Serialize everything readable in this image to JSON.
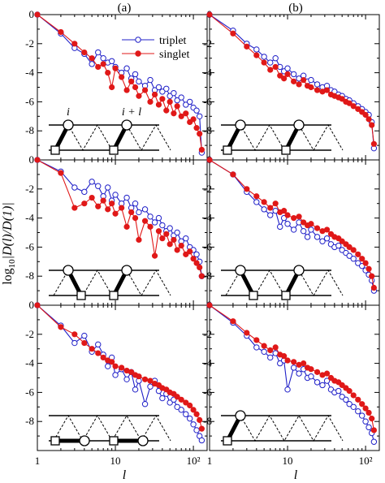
{
  "figure": {
    "column_labels": [
      "(a)",
      "(b)"
    ],
    "ylabel": "log10|D(l)/D(1)|",
    "ylabel_parts": {
      "log": "log",
      "sub": "10",
      "body": "|D(l)/D(1)|"
    },
    "xlabel": "l",
    "colors": {
      "triplet": "#2020c8",
      "singlet": "#e01818"
    }
  },
  "legend": {
    "triplet": "triplet",
    "singlet": "singlet"
  },
  "lattice_labels": {
    "site_i": "i",
    "site_il": "i + l"
  },
  "axes": {
    "y_ticks": [
      0,
      -2,
      -4,
      -6,
      -8
    ],
    "y_tick_labels": [
      "0",
      "-2",
      "-4",
      "-6",
      "-8"
    ],
    "x_ticks": [
      1,
      10,
      100
    ],
    "x_tick_labels": [
      "1",
      "10",
      "10²"
    ],
    "xlim": [
      1,
      150
    ],
    "ylim": [
      -10,
      0
    ],
    "xscale": "log"
  },
  "chart_data": [
    {
      "type": "line",
      "panel": "row1-a",
      "xscale": "log",
      "series": [
        {
          "name": "triplet",
          "x": [
            1,
            2,
            3,
            4,
            5,
            6,
            7,
            8,
            9,
            10,
            12,
            14,
            16,
            18,
            20,
            24,
            28,
            32,
            36,
            40,
            45,
            50,
            56,
            62,
            70,
            80,
            90,
            100,
            110,
            120,
            128
          ],
          "y": [
            0,
            -1.3,
            -2.3,
            -2.7,
            -3.4,
            -2.6,
            -3.0,
            -3.3,
            -3.2,
            -3.6,
            -4.0,
            -3.7,
            -4.4,
            -4.1,
            -4.6,
            -4.9,
            -4.5,
            -5.2,
            -5.0,
            -5.3,
            -5.1,
            -5.6,
            -5.4,
            -5.9,
            -5.7,
            -6.2,
            -6.0,
            -6.4,
            -6.6,
            -7.0,
            -9.5
          ]
        },
        {
          "name": "singlet",
          "x": [
            1,
            2,
            3,
            4,
            5,
            6,
            7,
            8,
            9,
            10,
            12,
            14,
            16,
            18,
            20,
            24,
            28,
            32,
            36,
            40,
            45,
            50,
            56,
            62,
            70,
            80,
            90,
            100,
            110,
            120,
            128
          ],
          "y": [
            0,
            -1.2,
            -2.0,
            -2.6,
            -3.0,
            -3.6,
            -3.4,
            -4.0,
            -5.0,
            -3.7,
            -4.3,
            -5.2,
            -4.6,
            -5.0,
            -5.6,
            -5.2,
            -6.0,
            -5.5,
            -6.2,
            -5.8,
            -6.6,
            -6.0,
            -6.8,
            -6.3,
            -7.0,
            -6.8,
            -7.4,
            -7.2,
            -7.8,
            -8.2,
            -9.3
          ]
        }
      ]
    },
    {
      "type": "line",
      "panel": "row1-b",
      "xscale": "log",
      "series": [
        {
          "name": "triplet",
          "x": [
            1,
            2,
            3,
            4,
            5,
            6,
            7,
            8,
            9,
            10,
            12,
            14,
            16,
            18,
            20,
            24,
            28,
            32,
            36,
            40,
            45,
            50,
            56,
            62,
            70,
            80,
            90,
            100,
            110,
            120,
            128
          ],
          "y": [
            0,
            -1.1,
            -2.0,
            -2.4,
            -2.9,
            -3.3,
            -3.0,
            -3.6,
            -3.9,
            -3.7,
            -4.1,
            -4.4,
            -4.2,
            -4.6,
            -4.5,
            -4.8,
            -5.0,
            -4.9,
            -5.2,
            -5.3,
            -5.5,
            -5.6,
            -5.8,
            -5.9,
            -6.1,
            -6.3,
            -6.5,
            -6.7,
            -6.9,
            -7.4,
            -9.2
          ]
        },
        {
          "name": "singlet",
          "x": [
            1,
            2,
            3,
            4,
            5,
            6,
            7,
            8,
            9,
            10,
            12,
            14,
            16,
            18,
            20,
            24,
            28,
            32,
            36,
            40,
            45,
            50,
            56,
            62,
            70,
            80,
            90,
            100,
            110,
            120,
            128
          ],
          "y": [
            0,
            -1.3,
            -2.2,
            -2.8,
            -3.3,
            -3.8,
            -3.6,
            -4.2,
            -4.4,
            -4.1,
            -4.6,
            -4.8,
            -4.5,
            -4.9,
            -5.0,
            -5.2,
            -5.3,
            -5.2,
            -5.5,
            -5.6,
            -5.7,
            -5.8,
            -6.0,
            -6.1,
            -6.3,
            -6.5,
            -6.7,
            -6.9,
            -7.2,
            -7.6,
            -8.9
          ]
        }
      ]
    },
    {
      "type": "line",
      "panel": "row2-a",
      "xscale": "log",
      "series": [
        {
          "name": "triplet",
          "x": [
            1,
            2,
            3,
            4,
            5,
            6,
            7,
            8,
            9,
            10,
            12,
            14,
            16,
            18,
            20,
            24,
            28,
            32,
            36,
            40,
            45,
            50,
            56,
            62,
            70,
            80,
            90,
            100,
            110,
            120,
            128
          ],
          "y": [
            0,
            -0.8,
            -1.9,
            -2.2,
            -1.5,
            -1.8,
            -2.5,
            -1.9,
            -2.8,
            -2.4,
            -3.0,
            -2.6,
            -3.3,
            -3.0,
            -3.6,
            -3.4,
            -3.9,
            -4.3,
            -4.0,
            -4.5,
            -4.9,
            -4.7,
            -5.2,
            -5.0,
            -5.6,
            -5.4,
            -6.0,
            -6.2,
            -6.5,
            -7.0,
            -8.0
          ]
        },
        {
          "name": "singlet",
          "x": [
            1,
            2,
            3,
            4,
            5,
            6,
            7,
            8,
            9,
            10,
            12,
            14,
            16,
            18,
            20,
            24,
            28,
            32,
            36,
            40,
            45,
            50,
            56,
            62,
            70,
            80,
            90,
            100,
            110,
            120,
            128
          ],
          "y": [
            0,
            -0.9,
            -3.3,
            -3.0,
            -2.6,
            -3.2,
            -2.8,
            -3.4,
            -3.0,
            -3.7,
            -3.3,
            -4.6,
            -3.6,
            -4.0,
            -5.5,
            -4.2,
            -4.6,
            -6.6,
            -4.9,
            -5.4,
            -5.1,
            -5.8,
            -5.5,
            -6.2,
            -5.9,
            -6.5,
            -6.3,
            -6.8,
            -7.1,
            -7.4,
            -8.0
          ]
        }
      ]
    },
    {
      "type": "line",
      "panel": "row2-b",
      "xscale": "log",
      "series": [
        {
          "name": "triplet",
          "x": [
            1,
            2,
            3,
            4,
            5,
            6,
            7,
            8,
            9,
            10,
            12,
            14,
            16,
            18,
            20,
            24,
            28,
            32,
            36,
            40,
            45,
            50,
            56,
            62,
            70,
            80,
            90,
            100,
            110,
            120,
            128
          ],
          "y": [
            0,
            -1.0,
            -2.2,
            -2.9,
            -3.4,
            -3.8,
            -3.5,
            -4.6,
            -4.0,
            -4.4,
            -4.8,
            -4.3,
            -4.9,
            -5.3,
            -4.8,
            -5.3,
            -5.6,
            -5.4,
            -5.8,
            -6.0,
            -5.9,
            -6.2,
            -6.4,
            -6.6,
            -6.8,
            -7.1,
            -7.3,
            -7.6,
            -7.9,
            -8.3,
            -9.0
          ]
        },
        {
          "name": "singlet",
          "x": [
            1,
            2,
            3,
            4,
            5,
            6,
            7,
            8,
            9,
            10,
            12,
            14,
            16,
            18,
            20,
            24,
            28,
            32,
            36,
            40,
            45,
            50,
            56,
            62,
            70,
            80,
            90,
            100,
            110,
            120,
            128
          ],
          "y": [
            0,
            -1.0,
            -2.0,
            -2.5,
            -2.9,
            -3.3,
            -3.0,
            -3.6,
            -3.5,
            -3.8,
            -4.0,
            -3.9,
            -4.3,
            -4.5,
            -4.4,
            -4.7,
            -4.9,
            -4.8,
            -5.1,
            -5.3,
            -5.4,
            -5.6,
            -5.8,
            -6.0,
            -6.2,
            -6.5,
            -6.8,
            -7.1,
            -7.5,
            -8.0,
            -8.8
          ]
        }
      ]
    },
    {
      "type": "line",
      "panel": "row3-a",
      "xscale": "log",
      "series": [
        {
          "name": "triplet",
          "x": [
            1,
            2,
            3,
            4,
            5,
            6,
            7,
            8,
            9,
            10,
            12,
            14,
            16,
            18,
            20,
            24,
            28,
            32,
            36,
            40,
            45,
            50,
            56,
            62,
            70,
            80,
            90,
            100,
            110,
            120,
            128
          ],
          "y": [
            0,
            -1.4,
            -2.6,
            -2.1,
            -3.2,
            -2.7,
            -3.4,
            -4.2,
            -3.6,
            -4.8,
            -4.4,
            -5.1,
            -4.6,
            -5.8,
            -5.2,
            -6.8,
            -5.6,
            -5.2,
            -5.9,
            -6.4,
            -6.1,
            -6.7,
            -6.5,
            -7.0,
            -7.2,
            -7.5,
            -7.8,
            -8.2,
            -8.6,
            -9.0,
            -9.3
          ]
        },
        {
          "name": "singlet",
          "x": [
            1,
            2,
            3,
            4,
            5,
            6,
            7,
            8,
            9,
            10,
            12,
            14,
            16,
            18,
            20,
            24,
            28,
            32,
            36,
            40,
            45,
            50,
            56,
            62,
            70,
            80,
            90,
            100,
            110,
            120,
            128
          ],
          "y": [
            0,
            -1.5,
            -2.0,
            -2.6,
            -3.0,
            -3.3,
            -3.6,
            -3.8,
            -3.9,
            -4.2,
            -4.3,
            -4.5,
            -4.6,
            -4.8,
            -4.9,
            -5.1,
            -5.2,
            -5.4,
            -5.5,
            -5.7,
            -5.8,
            -6.0,
            -6.1,
            -6.3,
            -6.5,
            -6.7,
            -6.9,
            -7.2,
            -7.5,
            -7.9,
            -8.5
          ]
        }
      ]
    },
    {
      "type": "line",
      "panel": "row3-b",
      "xscale": "log",
      "series": [
        {
          "name": "triplet",
          "x": [
            1,
            2,
            3,
            4,
            5,
            6,
            7,
            8,
            9,
            10,
            12,
            14,
            16,
            18,
            20,
            24,
            28,
            32,
            36,
            40,
            45,
            50,
            56,
            62,
            70,
            80,
            90,
            100,
            110,
            120,
            128
          ],
          "y": [
            0,
            -1.2,
            -2.1,
            -2.9,
            -3.2,
            -3.6,
            -3.3,
            -4.0,
            -3.8,
            -5.8,
            -4.3,
            -4.7,
            -4.4,
            -5.0,
            -4.9,
            -5.3,
            -5.5,
            -5.2,
            -5.8,
            -6.0,
            -5.9,
            -6.3,
            -6.5,
            -6.8,
            -7.0,
            -7.3,
            -7.6,
            -8.0,
            -8.4,
            -8.8,
            -9.4
          ]
        },
        {
          "name": "singlet",
          "x": [
            1,
            2,
            3,
            4,
            5,
            6,
            7,
            8,
            9,
            10,
            12,
            14,
            16,
            18,
            20,
            24,
            28,
            32,
            36,
            40,
            45,
            50,
            56,
            62,
            70,
            80,
            90,
            100,
            110,
            120,
            128
          ],
          "y": [
            0,
            -1.1,
            -1.9,
            -2.4,
            -2.8,
            -3.1,
            -2.9,
            -3.4,
            -3.5,
            -3.8,
            -3.9,
            -4.1,
            -4.0,
            -4.3,
            -4.4,
            -4.6,
            -4.8,
            -4.7,
            -5.0,
            -5.2,
            -5.3,
            -5.5,
            -5.7,
            -5.9,
            -6.2,
            -6.5,
            -6.8,
            -7.1,
            -7.4,
            -7.8,
            -8.6
          ]
        }
      ]
    }
  ]
}
